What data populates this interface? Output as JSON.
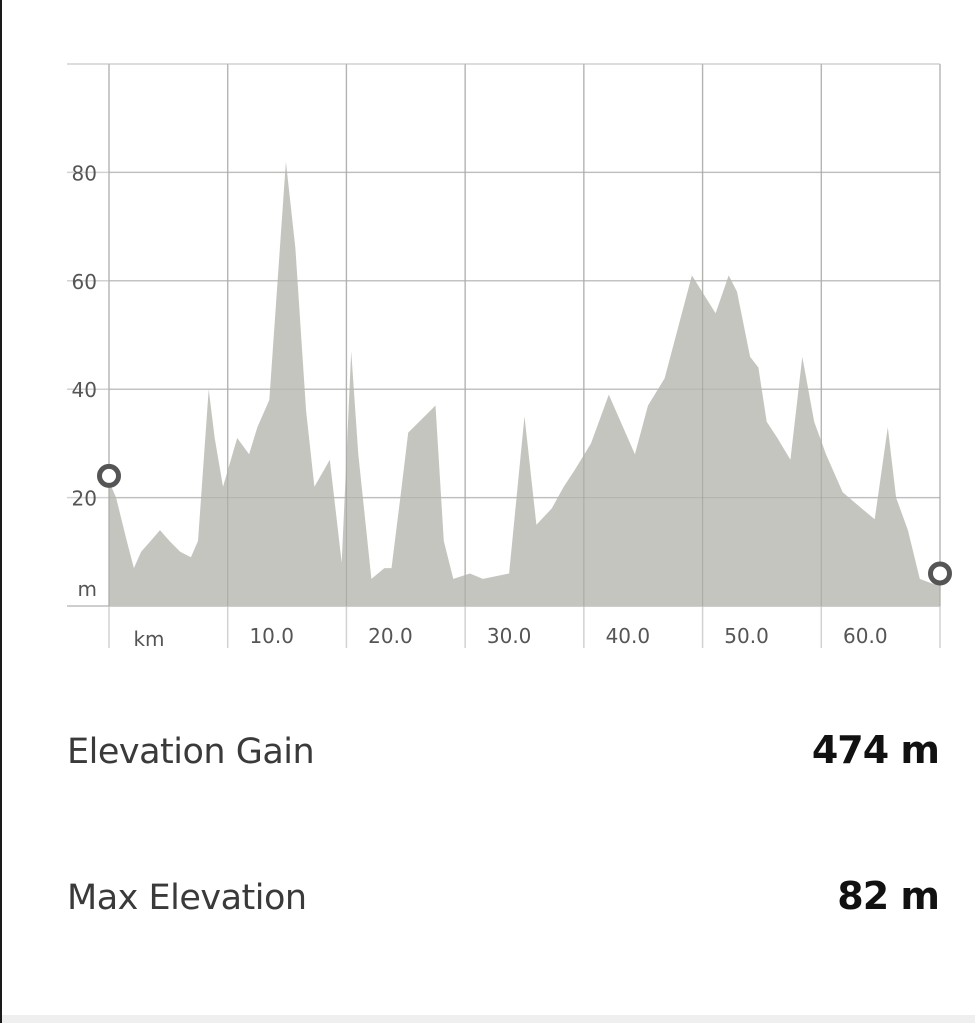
{
  "chart_data": {
    "type": "area",
    "title": "",
    "xlabel": "",
    "ylabel": "",
    "x_unit": "km",
    "y_unit": "m",
    "xlim": [
      0,
      70
    ],
    "ylim": [
      0,
      100
    ],
    "x_ticks": [
      10,
      20,
      30,
      40,
      50,
      60
    ],
    "x_tick_labels": [
      "10.0",
      "20.0",
      "30.0",
      "40.0",
      "50.0",
      "60.0"
    ],
    "y_ticks": [
      20,
      40,
      60,
      80
    ],
    "y_tick_labels": [
      "20",
      "40",
      "60",
      "80"
    ],
    "grid": true,
    "fill_color": "#c5c5c0",
    "grid_color": "#d2d2d2",
    "marker_color": "#555555",
    "start_marker": [
      0,
      24
    ],
    "end_marker": [
      70,
      6
    ],
    "series": [
      {
        "x": [
          0,
          0.6,
          1.5,
          2.1,
          2.7,
          3.5,
          4.3,
          5.1,
          6.0,
          6.9,
          7.5,
          8.4,
          8.9,
          9.6,
          10.8,
          11.8,
          12.5,
          13.5,
          14.9,
          15.7,
          16.6,
          17.3,
          18.6,
          19.6,
          20.4,
          21.0,
          22.1,
          23.2,
          23.8,
          24.6,
          25.2,
          27.5,
          28.2,
          29.0,
          30.4,
          31.5,
          33.7,
          35.0,
          36.0,
          37.3,
          38.3,
          39.2,
          40.6,
          42.1,
          44.3,
          45.4,
          46.8,
          49.1,
          51.1,
          52.2,
          52.9,
          54.0,
          54.7,
          55.4,
          56.3,
          57.4,
          58.4,
          59.4,
          60.4,
          61.8,
          63.4,
          64.5,
          65.6,
          66.3,
          67.3,
          68.3,
          69.5,
          70.0
        ],
        "y": [
          23,
          20,
          12,
          7,
          10,
          12,
          14,
          12,
          10,
          9,
          12,
          40,
          31,
          22,
          31,
          28,
          33,
          38,
          82,
          66,
          36,
          22,
          27,
          8,
          47,
          28,
          5,
          7,
          7,
          21,
          32,
          37,
          12,
          5,
          6,
          5,
          6,
          35,
          15,
          18,
          22,
          25,
          30,
          39,
          28,
          37,
          42,
          61,
          54,
          61,
          58,
          46,
          44,
          34,
          31,
          27,
          46,
          34,
          28,
          21,
          18,
          16,
          33,
          20,
          14,
          5,
          4,
          5
        ]
      }
    ]
  },
  "stats": {
    "elevation_gain_label": "Elevation Gain",
    "elevation_gain_value": "474 m",
    "max_elevation_label": "Max Elevation",
    "max_elevation_value": "82 m"
  }
}
